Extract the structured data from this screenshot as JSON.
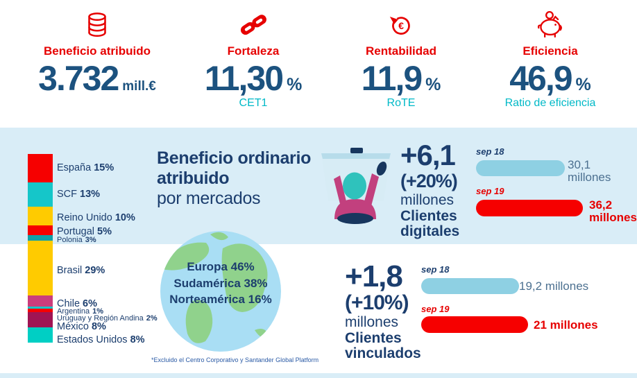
{
  "palette": {
    "red": "#e60000",
    "bar_red": "#f60000",
    "bar_blue": "#8ed0e3",
    "navy_title": "#1c3e6e",
    "steel_number": "#1c527f",
    "teal_sub": "#00b9c7",
    "band_bg": "#d9edf7",
    "value_text": "#4c7090",
    "globe_water": "#a9def4",
    "globe_land": "#90d28c"
  },
  "kpis": [
    {
      "icon": "coins-icon",
      "label": "Beneficio atribuido",
      "value": "3.732",
      "unit": "mill.€",
      "sub": ""
    },
    {
      "icon": "chain-link-icon",
      "label": "Fortaleza",
      "value": "11,30",
      "unit": "%",
      "sub": "CET1"
    },
    {
      "icon": "euro-cycle-icon",
      "label": "Rentabilidad",
      "value": "11,9",
      "unit": "%",
      "sub": "RoTE"
    },
    {
      "icon": "piggy-bank-icon",
      "label": "Eficiencia",
      "value": "46,9",
      "unit": "%",
      "sub": "Ratio de eficiencia"
    }
  ],
  "markets": {
    "title_line1": "Beneficio ordinario",
    "title_line2": "atribuido",
    "title_line3": "por mercados",
    "legend": [
      {
        "name": "España",
        "pct": "15%",
        "value": 15,
        "color": "#f60000"
      },
      {
        "name": "SCF",
        "pct": "13%",
        "value": 13,
        "color": "#15c6c9"
      },
      {
        "name": "Reino Unido",
        "pct": "10%",
        "value": 10,
        "color": "#ffcb00"
      },
      {
        "name": "Portugal",
        "pct": "5%",
        "value": 5,
        "color": "#f60000"
      },
      {
        "name": "Polonia",
        "pct": "3%",
        "value": 3,
        "color": "#0fa0a8"
      },
      {
        "name": "Brasil",
        "pct": "29%",
        "value": 29,
        "color": "#ffcb00"
      },
      {
        "name": "Chile",
        "pct": "6%",
        "value": 6,
        "color": "#cb3d7c"
      },
      {
        "name": "Argentina",
        "pct": "1%",
        "value": 1,
        "color": "#15c6c9"
      },
      {
        "name": "Uruguay y Región Andina",
        "pct": "2%",
        "value": 2,
        "color": "#f60000"
      },
      {
        "name": "México",
        "pct": "8%",
        "value": 8,
        "color": "#a01453"
      },
      {
        "name": "Estados Unidos",
        "pct": "8%",
        "value": 8,
        "color": "#00cfc4"
      }
    ],
    "globe_lines": [
      "Europa 46%",
      "Sudamérica 38%",
      "Norteamérica 16%"
    ],
    "footnote": "*Excluido el Centro Corporativo y Santander Global Platform"
  },
  "digital_clients": {
    "delta": "+6,1",
    "delta_pct": "(+20%)",
    "unit": "millones",
    "label_line1": "Clientes",
    "label_line2": "digitales",
    "bars": [
      {
        "period": "sep 18",
        "value_num": 30.1,
        "label": "30,1",
        "label2": "millones",
        "color_key": "blue"
      },
      {
        "period": "sep 19",
        "value_num": 36.2,
        "label": "36,2",
        "label2": "millones",
        "color_key": "red"
      }
    ]
  },
  "linked_clients": {
    "delta": "+1,8",
    "delta_pct": "(+10%)",
    "unit": "millones",
    "label_line1": "Clientes",
    "label_line2": "vinculados",
    "bars": [
      {
        "period": "sep 18",
        "value_num": 19.2,
        "label": "19,2 millones",
        "color_key": "blue"
      },
      {
        "period": "sep 19",
        "value_num": 21,
        "label": "21 millones",
        "color_key": "red"
      }
    ]
  },
  "chart_data": [
    {
      "type": "table",
      "title": "KPIs Grupo",
      "rows": [
        [
          "Beneficio atribuido",
          "3.732 mill.€"
        ],
        [
          "Fortaleza (CET1)",
          "11,30%"
        ],
        [
          "Rentabilidad (RoTE)",
          "11,9%"
        ],
        [
          "Eficiencia (Ratio de eficiencia)",
          "46,9%"
        ]
      ]
    },
    {
      "type": "bar",
      "subtype": "stacked-percent-column",
      "title": "Beneficio ordinario atribuido por mercados",
      "categories": [
        "España",
        "SCF",
        "Reino Unido",
        "Portugal",
        "Polonia",
        "Brasil",
        "Chile",
        "Argentina",
        "Uruguay y Región Andina",
        "México",
        "Estados Unidos"
      ],
      "values": [
        15,
        13,
        10,
        5,
        3,
        29,
        6,
        1,
        2,
        8,
        8
      ],
      "unit": "%",
      "legend_position": "right"
    },
    {
      "type": "bar",
      "title": "Beneficio ordinario atribuido por regiones",
      "categories": [
        "Europa",
        "Sudamérica",
        "Norteamérica"
      ],
      "values": [
        46,
        38,
        16
      ],
      "unit": "%"
    },
    {
      "type": "bar",
      "orientation": "horizontal",
      "title": "Clientes digitales (millones)",
      "categories": [
        "sep 18",
        "sep 19"
      ],
      "values": [
        30.1,
        36.2
      ],
      "annotation": "+6,1 (+20%) millones",
      "colors": [
        "#8ed0e3",
        "#f60000"
      ]
    },
    {
      "type": "bar",
      "orientation": "horizontal",
      "title": "Clientes vinculados (millones)",
      "categories": [
        "sep 18",
        "sep 19"
      ],
      "values": [
        19.2,
        21
      ],
      "annotation": "+1,8 (+10%) millones",
      "colors": [
        "#8ed0e3",
        "#f60000"
      ]
    }
  ]
}
